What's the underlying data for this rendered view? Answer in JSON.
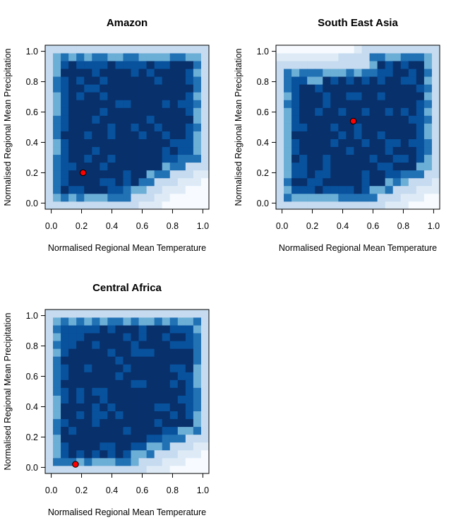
{
  "chart_data": [
    {
      "type": "heatmap",
      "title": "Amazon",
      "xlabel": "Normalised Regional Mean Temperature",
      "ylabel": "Normalised Regional Mean  Precipitation",
      "xlim": [
        0,
        1
      ],
      "ylim": [
        0,
        1
      ],
      "xticks": [
        "0.0",
        "0.2",
        "0.4",
        "0.6",
        "0.8",
        "1.0"
      ],
      "yticks": [
        "0.0",
        "0.2",
        "0.4",
        "0.6",
        "0.8",
        "1.0"
      ],
      "grid_size": 21,
      "colorscale": [
        "#f7fbff",
        "#deebf7",
        "#c6dbef",
        "#6baed6",
        "#2171b5",
        "#08519c",
        "#08306b"
      ],
      "boundary": "y >= 0.52*x - 0.21 with inner core; full core above",
      "marker": {
        "x": 0.21,
        "y": 0.2,
        "color": "#ff0000"
      }
    },
    {
      "type": "heatmap",
      "title": "South East Asia",
      "xlabel": "Normalised Regional Mean Temperature",
      "ylabel": "Normalised Regional Mean  Precipitation",
      "xlim": [
        0,
        1
      ],
      "ylim": [
        0,
        1
      ],
      "xticks": [
        "0.0",
        "0.2",
        "0.4",
        "0.6",
        "0.8",
        "1.0"
      ],
      "yticks": [
        "0.0",
        "0.2",
        "0.4",
        "0.6",
        "0.8",
        "1.0"
      ],
      "grid_size": 21,
      "colorscale": [
        "#f7fbff",
        "#deebf7",
        "#c6dbef",
        "#6baed6",
        "#2171b5",
        "#08519c",
        "#08306b"
      ],
      "marker": {
        "x": 0.47,
        "y": 0.54,
        "color": "#ff0000"
      }
    },
    {
      "type": "heatmap",
      "title": "Central Africa",
      "xlabel": "Normalised Regional Mean Temperature",
      "ylabel": "Normalised Regional Mean Precipitation",
      "xlim": [
        0,
        1
      ],
      "ylim": [
        0,
        1
      ],
      "xticks": [
        "0.0",
        "0.2",
        "0.4",
        "0.6",
        "0.8",
        "1.0"
      ],
      "yticks": [
        "0.0",
        "0.2",
        "0.4",
        "0.6",
        "0.8",
        "1.0"
      ],
      "grid_size": 21,
      "colorscale": [
        "#f7fbff",
        "#deebf7",
        "#c6dbef",
        "#6baed6",
        "#2171b5",
        "#08519c",
        "#08306b"
      ],
      "marker": {
        "x": 0.16,
        "y": 0.02,
        "color": "#ff0000"
      }
    }
  ]
}
